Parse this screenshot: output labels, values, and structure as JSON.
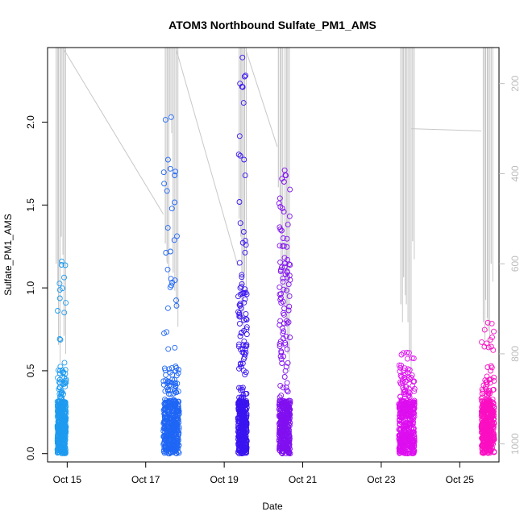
{
  "chart_data": {
    "type": "scatter",
    "title": "ATOM3 Northbound Sulfate_PM1_AMS",
    "xlabel": "Date",
    "ylabel": "Sulfate_PM1_AMS",
    "x_ticks": [
      "Oct 15",
      "Oct 17",
      "Oct 19",
      "Oct 21",
      "Oct 23",
      "Oct 25"
    ],
    "y_ticks": [
      "0.0",
      "0.5",
      "1.0",
      "1.5",
      "2.0"
    ],
    "y_right_ticks": [
      "200",
      "400",
      "600",
      "800",
      "1000"
    ],
    "xlim": [
      14.5,
      26.0
    ],
    "ylim": [
      -0.05,
      2.45
    ],
    "y_right_lim": [
      1040,
      120
    ],
    "y_right_reversed": true,
    "point_style": "open-circle",
    "clusters": [
      {
        "x_start": 14.75,
        "x_end": 14.97,
        "typical_max": 0.55,
        "max": 1.16,
        "color": "#1e9bf0"
      },
      {
        "x_start": 17.45,
        "x_end": 17.85,
        "typical_max": 0.52,
        "max": 2.03,
        "color": "#1f66f5"
      },
      {
        "x_start": 19.35,
        "x_end": 19.58,
        "typical_max": 1.0,
        "max": 2.39,
        "color": "#3a14f0"
      },
      {
        "x_start": 20.4,
        "x_end": 20.68,
        "typical_max": 1.3,
        "max": 1.71,
        "color": "#8110f0"
      },
      {
        "x_start": 23.45,
        "x_end": 23.85,
        "typical_max": 0.45,
        "max": 0.61,
        "color": "#dd0ef0"
      },
      {
        "x_start": 25.55,
        "x_end": 25.88,
        "typical_max": 0.45,
        "max": 0.79,
        "color": "#fb0fc2"
      }
    ],
    "secondary_series": {
      "color": "#c8c8c8",
      "description_axis": "right",
      "transits": [
        [
          14.92,
          125
        ],
        [
          17.45,
          490
        ]
      ],
      "transit_lines": [
        [
          [
            14.92,
            125
          ],
          [
            17.45,
            490
          ]
        ],
        [
          [
            17.78,
            125
          ],
          [
            19.35,
            605
          ]
        ],
        [
          [
            19.55,
            125
          ],
          [
            20.35,
            340
          ]
        ],
        [
          [
            23.75,
            300
          ],
          [
            25.55,
            305
          ]
        ]
      ],
      "spikes": [
        {
          "x": 14.72,
          "bottom": 600
        },
        {
          "x": 14.78,
          "bottom": 780
        },
        {
          "x": 14.85,
          "bottom": 540
        },
        {
          "x": 14.92,
          "bottom": 760
        },
        {
          "x": 17.5,
          "bottom": 555
        },
        {
          "x": 17.55,
          "bottom": 600
        },
        {
          "x": 17.62,
          "bottom": 270
        },
        {
          "x": 17.7,
          "bottom": 620
        },
        {
          "x": 17.78,
          "bottom": 700
        },
        {
          "x": 19.38,
          "bottom": 500
        },
        {
          "x": 19.45,
          "bottom": 720
        },
        {
          "x": 19.52,
          "bottom": 620
        },
        {
          "x": 20.38,
          "bottom": 430
        },
        {
          "x": 20.45,
          "bottom": 640
        },
        {
          "x": 20.55,
          "bottom": 700
        },
        {
          "x": 20.62,
          "bottom": 800
        },
        {
          "x": 23.5,
          "bottom": 690
        },
        {
          "x": 23.57,
          "bottom": 630
        },
        {
          "x": 23.64,
          "bottom": 690
        },
        {
          "x": 23.72,
          "bottom": 810
        },
        {
          "x": 23.8,
          "bottom": 550
        },
        {
          "x": 25.6,
          "bottom": 730
        },
        {
          "x": 25.66,
          "bottom": 680
        },
        {
          "x": 25.72,
          "bottom": 750
        },
        {
          "x": 25.8,
          "bottom": 600
        }
      ]
    }
  }
}
